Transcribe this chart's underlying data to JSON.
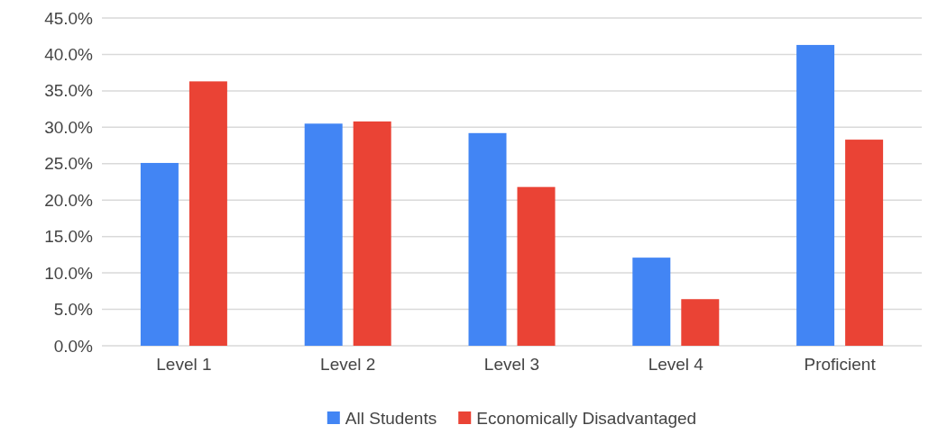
{
  "chart_data": {
    "type": "bar",
    "categories": [
      "Level 1",
      "Level 2",
      "Level 3",
      "Level 4",
      "Proficient"
    ],
    "series": [
      {
        "name": "All Students",
        "color": "#4285f4",
        "values": [
          25.1,
          30.5,
          29.2,
          12.1,
          41.3
        ]
      },
      {
        "name": "Economically Disadvantaged",
        "color": "#ea4335",
        "values": [
          36.3,
          30.8,
          21.8,
          6.4,
          28.3
        ]
      }
    ],
    "ylim": [
      0,
      45
    ],
    "yticks": [
      {
        "value": 0,
        "label": "0.0%"
      },
      {
        "value": 5,
        "label": "5.0%"
      },
      {
        "value": 10,
        "label": "10.0%"
      },
      {
        "value": 15,
        "label": "15.0%"
      },
      {
        "value": 20,
        "label": "20.0%"
      },
      {
        "value": 25,
        "label": "25.0%"
      },
      {
        "value": 30,
        "label": "30.0%"
      },
      {
        "value": 35,
        "label": "35.0%"
      },
      {
        "value": 40,
        "label": "40.0%"
      },
      {
        "value": 45,
        "label": "45.0%"
      }
    ],
    "grid": "y",
    "legend": "bottom"
  }
}
